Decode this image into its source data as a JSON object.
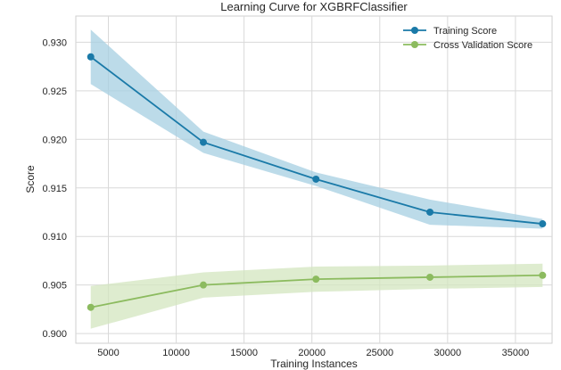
{
  "chart_data": {
    "type": "line",
    "title": "Learning Curve for XGBRFClassifier",
    "xlabel": "Training Instances",
    "ylabel": "Score",
    "xlim": [
      2600,
      37700
    ],
    "ylim": [
      0.899,
      0.9327
    ],
    "x": [
      3700,
      12000,
      20300,
      28700,
      37000
    ],
    "xticks": [
      5000,
      10000,
      15000,
      20000,
      25000,
      30000,
      35000
    ],
    "xtick_labels": [
      "5000",
      "10000",
      "15000",
      "20000",
      "25000",
      "30000",
      "35000"
    ],
    "yticks": [
      0.9,
      0.905,
      0.91,
      0.915,
      0.92,
      0.925,
      0.93
    ],
    "ytick_labels": [
      "0.900",
      "0.905",
      "0.910",
      "0.915",
      "0.920",
      "0.925",
      "0.930"
    ],
    "grid": true,
    "legend_position": "top-right",
    "series": [
      {
        "name": "Training Score",
        "color": "#1a7aa8",
        "band_color": "#a6cfe2",
        "values": [
          0.9285,
          0.9197,
          0.9159,
          0.9125,
          0.9113
        ],
        "lower": [
          0.9257,
          0.9186,
          0.9152,
          0.9112,
          0.9108
        ],
        "upper": [
          0.9313,
          0.9208,
          0.9166,
          0.9138,
          0.9118
        ]
      },
      {
        "name": "Cross Validation Score",
        "color": "#8cbb5f",
        "band_color": "#d3e6bf",
        "values": [
          0.9027,
          0.905,
          0.9056,
          0.9058,
          0.906
        ],
        "lower": [
          0.9005,
          0.9037,
          0.9043,
          0.9046,
          0.9048
        ],
        "upper": [
          0.9049,
          0.9063,
          0.9069,
          0.907,
          0.9072
        ]
      }
    ]
  }
}
